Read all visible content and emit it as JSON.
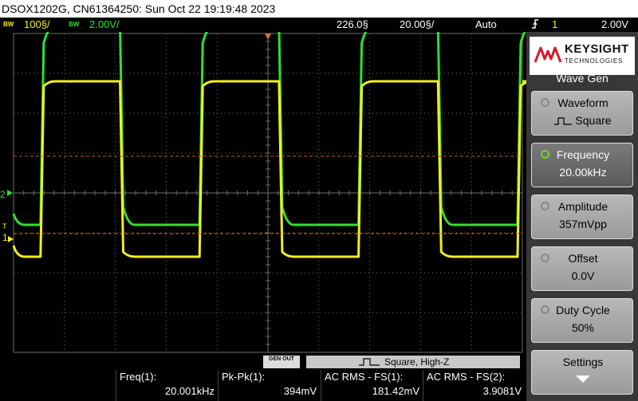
{
  "title": "DSOX1202G, CN61364250: Sun Oct 22 19:19:48 2023",
  "status": {
    "ch1": {
      "bw": "BW",
      "scale": "100§/"
    },
    "ch2": {
      "bw": "BW",
      "scale": "2.00V/"
    },
    "time_delay": "226.0§",
    "time_scale": "20.00§/",
    "trigger_mode": "Auto",
    "trigger_slope_icon": "rising-edge-icon",
    "trigger_source": "1",
    "trigger_level": "2.00V"
  },
  "colors": {
    "ch1": "#f0f020",
    "ch2": "#30e030",
    "grid": "#6e6e6e",
    "trigger_line": "#e07030"
  },
  "markers": {
    "ch2_ground": "2",
    "ch1_ground": "1",
    "trigger_marker": "T"
  },
  "waveforms": {
    "ch1": {
      "period_div": 3.125,
      "high_div": 2.8,
      "low_div": -1.6,
      "start_offset_div": 0.53
    },
    "ch2": {
      "period_div": 3.125,
      "high_div": 4.2,
      "low_div": -0.8,
      "start_offset_div": 0.53
    }
  },
  "wavegen": {
    "out_label": "GEN OUT",
    "status": "Square, High-Z"
  },
  "measurements": [
    {
      "label": "Freq(1):",
      "value": "20.001kHz"
    },
    {
      "label": "Pk-Pk(1):",
      "value": "394mV"
    },
    {
      "label": "AC RMS - FS(1):",
      "value": "181.42mV"
    },
    {
      "label": "AC RMS - FS(2):",
      "value": "3.9081V"
    }
  ],
  "brand": {
    "name": "KEYSIGHT",
    "sub": "TECHNOLOGIES"
  },
  "menu": {
    "title": "Wave Gen",
    "softkeys": [
      {
        "label": "Waveform",
        "value": "Square"
      },
      {
        "label": "Frequency",
        "value": "20.00kHz"
      },
      {
        "label": "Amplitude",
        "value": "357mVpp"
      },
      {
        "label": "Offset",
        "value": "0.0V"
      },
      {
        "label": "Duty Cycle",
        "value": "50%"
      },
      {
        "label": "Settings",
        "value": ""
      }
    ]
  }
}
